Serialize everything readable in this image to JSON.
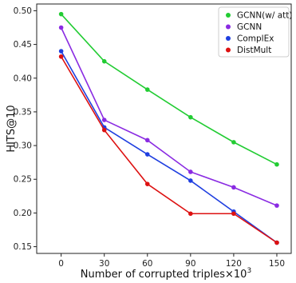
{
  "chart_data": {
    "type": "line",
    "xlabel": "Number of corrupted triples×10",
    "xlabel_sup": "3",
    "ylabel": "HITS@10",
    "x": [
      0,
      30,
      60,
      90,
      120,
      150
    ],
    "x_tick_labels": [
      "0",
      "30",
      "60",
      "90",
      "120",
      "150"
    ],
    "xlim": [
      -17,
      160
    ],
    "ylim": [
      0.14,
      0.51
    ],
    "y_ticks": [
      0.15,
      0.2,
      0.25,
      0.3,
      0.35,
      0.4,
      0.45,
      0.5
    ],
    "y_tick_labels": [
      "0.15",
      "0.20",
      "0.25",
      "0.30",
      "0.35",
      "0.40",
      "0.45",
      "0.50"
    ],
    "grid": false,
    "legend_position": "top-right",
    "series": [
      {
        "name": "GCNN(w/ att)",
        "color": "#22cc33",
        "values": [
          0.495,
          0.425,
          0.383,
          0.342,
          0.305,
          0.272
        ]
      },
      {
        "name": "GCNN",
        "color": "#8a2be2",
        "values": [
          0.475,
          0.338,
          0.308,
          0.261,
          0.238,
          0.211
        ]
      },
      {
        "name": "ComplEx",
        "color": "#1f3fe0",
        "values": [
          0.44,
          0.327,
          0.287,
          0.248,
          0.202,
          0.156
        ]
      },
      {
        "name": "DistMult",
        "color": "#dd1111",
        "values": [
          0.432,
          0.323,
          0.243,
          0.199,
          0.199,
          0.156
        ]
      }
    ]
  }
}
